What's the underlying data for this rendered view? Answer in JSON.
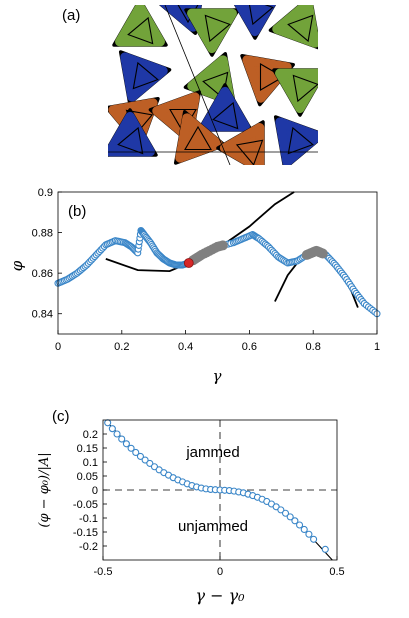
{
  "panel_labels": {
    "a": "(a)",
    "b": "(b)",
    "c": "(c)"
  },
  "colors": {
    "green": "#72a33a",
    "orange": "#bd5f25",
    "blue": "#1f38a6",
    "data_marker": "#3a86c8",
    "highlight_gray": "#808080",
    "highlight_red": "#d62728",
    "fit_line": "#000000"
  },
  "particles": [
    {
      "color": "green"
    },
    {
      "color": "blue"
    },
    {
      "color": "green"
    },
    {
      "color": "blue"
    },
    {
      "color": "green"
    },
    {
      "color": "blue"
    },
    {
      "color": "green"
    },
    {
      "color": "orange"
    },
    {
      "color": "orange"
    },
    {
      "color": "orange"
    },
    {
      "color": "blue"
    },
    {
      "color": "green"
    },
    {
      "color": "blue"
    },
    {
      "color": "orange"
    },
    {
      "color": "orange"
    },
    {
      "color": "blue"
    }
  ],
  "chart_data": [
    {
      "panel": "(b)",
      "type": "scatter",
      "xlabel": "γ",
      "ylabel": "φ",
      "xlim": [
        0,
        1
      ],
      "ylim": [
        0.83,
        0.9
      ],
      "xticks": [
        "0",
        "0.2",
        "0.4",
        "0.6",
        "0.8",
        "1"
      ],
      "yticks": [
        "0.84",
        "0.86",
        "0.88",
        "0.9"
      ],
      "series": [
        {
          "marker": "open-circle",
          "x": [
            0.0,
            0.03,
            0.06,
            0.09,
            0.12,
            0.15,
            0.18,
            0.21,
            0.23,
            0.25,
            0.26,
            0.27,
            0.29,
            0.31,
            0.33,
            0.35,
            0.37,
            0.39,
            0.41,
            0.45,
            0.5,
            0.55,
            0.58,
            0.61,
            0.63,
            0.66,
            0.69,
            0.72,
            0.75,
            0.78,
            0.81,
            0.84,
            0.87,
            0.9,
            0.93,
            0.96,
            1.0
          ],
          "y": [
            0.855,
            0.857,
            0.86,
            0.864,
            0.869,
            0.874,
            0.876,
            0.875,
            0.873,
            0.87,
            0.881,
            0.879,
            0.875,
            0.87,
            0.867,
            0.865,
            0.864,
            0.864,
            0.865,
            0.869,
            0.873,
            0.875,
            0.877,
            0.879,
            0.877,
            0.873,
            0.868,
            0.865,
            0.866,
            0.869,
            0.871,
            0.869,
            0.864,
            0.858,
            0.851,
            0.845,
            0.84
          ]
        }
      ],
      "highlights": [
        {
          "color": "gray",
          "x_from": 0.42,
          "x_to": 0.52
        },
        {
          "color": "gray",
          "x_from": 0.78,
          "x_to": 0.83
        },
        {
          "color": "red",
          "x": 0.41,
          "y": 0.865
        }
      ],
      "fit_curves": [
        {
          "x": [
            0.15,
            0.25,
            0.35,
            0.41,
            0.5,
            0.6,
            0.68,
            0.74
          ],
          "y": [
            0.867,
            0.8615,
            0.861,
            0.865,
            0.872,
            0.883,
            0.894,
            0.9
          ]
        },
        {
          "x": [
            0.68,
            0.72,
            0.76,
            0.8,
            0.84,
            0.88,
            0.92,
            0.94
          ],
          "y": [
            0.846,
            0.859,
            0.867,
            0.87,
            0.868,
            0.862,
            0.851,
            0.843
          ]
        }
      ]
    },
    {
      "panel": "(c)",
      "type": "scatter",
      "xlabel": "γ − γ₀",
      "ylabel": "(φ − φ₀)/|A|",
      "xlim": [
        -0.5,
        0.5
      ],
      "ylim": [
        -0.25,
        0.25
      ],
      "xticks": [
        "-0.5",
        "0",
        "0.5"
      ],
      "yticks": [
        "-0.2",
        "-0.15",
        "-0.1",
        "-0.05",
        "0",
        "0.05",
        "0.1",
        "0.15",
        "0.2"
      ],
      "annotations": [
        "jammed",
        "unjammed"
      ],
      "series": [
        {
          "marker": "open-circle",
          "x": [
            -0.48,
            -0.46,
            -0.44,
            -0.42,
            -0.4,
            -0.38,
            -0.36,
            -0.34,
            -0.32,
            -0.3,
            -0.28,
            -0.26,
            -0.24,
            -0.22,
            -0.2,
            -0.18,
            -0.16,
            -0.14,
            -0.12,
            -0.1,
            -0.08,
            -0.06,
            -0.04,
            -0.02,
            0.0,
            0.02,
            0.04,
            0.06,
            0.08,
            0.1,
            0.12,
            0.14,
            0.16,
            0.18,
            0.2,
            0.22,
            0.24,
            0.26,
            0.28,
            0.3,
            0.32,
            0.34,
            0.36,
            0.38,
            0.4,
            0.45
          ],
          "y": [
            0.24,
            0.219,
            0.2,
            0.182,
            0.165,
            0.149,
            0.134,
            0.12,
            0.107,
            0.095,
            0.083,
            0.072,
            0.062,
            0.053,
            0.044,
            0.036,
            0.029,
            0.022,
            0.016,
            0.011,
            0.007,
            0.004,
            0.002,
            0.001,
            0.0,
            -0.001,
            -0.002,
            -0.004,
            -0.007,
            -0.01,
            -0.015,
            -0.02,
            -0.026,
            -0.033,
            -0.041,
            -0.05,
            -0.06,
            -0.071,
            -0.083,
            -0.096,
            -0.11,
            -0.125,
            -0.141,
            -0.158,
            -0.176,
            -0.212
          ]
        }
      ],
      "fit_curves": [
        {
          "x": [
            -0.48,
            -0.36,
            -0.24,
            -0.12,
            0.0,
            0.12,
            0.24,
            0.36,
            0.48
          ],
          "y": [
            0.24,
            0.134,
            0.062,
            0.016,
            0.0,
            -0.015,
            -0.06,
            -0.141,
            -0.25
          ]
        }
      ]
    }
  ]
}
